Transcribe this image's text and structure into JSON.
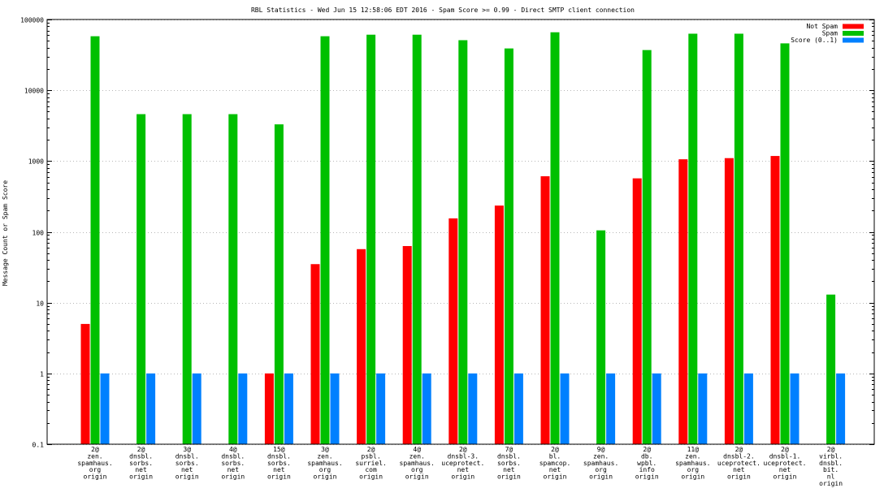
{
  "chart_data": {
    "type": "bar",
    "title": "RBL Statistics - Wed Jun 15 12:58:06 EDT 2016 - Spam Score >= 0.99 - Direct SMTP client connection",
    "xlabel": "",
    "ylabel": "Message Count or Spam Score",
    "yscale": "log",
    "ylim": [
      0.1,
      100000
    ],
    "yticks": [
      0.1,
      1,
      10,
      100,
      1000,
      10000,
      100000
    ],
    "ytick_labels": [
      "0.1",
      "1",
      "10",
      "100",
      "1000",
      "10000",
      "100000"
    ],
    "grid": true,
    "legend_position": "top-right",
    "categories": [
      "2@ zen. spamhaus. org origin",
      "2@ dnsbl. sorbs. net origin",
      "3@ dnsbl. sorbs. net origin",
      "4@ dnsbl. sorbs. net origin",
      "15@ dnsbl. sorbs. net origin",
      "3@ zen. spamhaus. org origin",
      "2@ psbl. surriel. com origin",
      "4@ zen. spamhaus. org origin",
      "2@ dnsbl-3. uceprotect. net origin",
      "7@ dnsbl. sorbs. net origin",
      "2@ bl. spamcop. net origin",
      "9@ zen. spamhaus. org origin",
      "2@ db. wpbl. info origin",
      "11@ zen. spamhaus. org origin",
      "2@ dnsbl-2. uceprotect. net origin",
      "2@ dnsbl-1. uceprotect. net origin",
      "2@ virbl. dnsbl. bit. nl origin"
    ],
    "category_lines": [
      [
        "2@",
        "zen.",
        "spamhaus.",
        "org",
        "origin"
      ],
      [
        "2@",
        "dnsbl.",
        "sorbs.",
        "net",
        "origin"
      ],
      [
        "3@",
        "dnsbl.",
        "sorbs.",
        "net",
        "origin"
      ],
      [
        "4@",
        "dnsbl.",
        "sorbs.",
        "net",
        "origin"
      ],
      [
        "15@",
        "dnsbl.",
        "sorbs.",
        "net",
        "origin"
      ],
      [
        "3@",
        "zen.",
        "spamhaus.",
        "org",
        "origin"
      ],
      [
        "2@",
        "psbl.",
        "surriel.",
        "com",
        "origin"
      ],
      [
        "4@",
        "zen.",
        "spamhaus.",
        "org",
        "origin"
      ],
      [
        "2@",
        "dnsbl-3.",
        "uceprotect.",
        "net",
        "origin"
      ],
      [
        "7@",
        "dnsbl.",
        "sorbs.",
        "net",
        "origin"
      ],
      [
        "2@",
        "bl.",
        "spamcop.",
        "net",
        "origin"
      ],
      [
        "9@",
        "zen.",
        "spamhaus.",
        "org",
        "origin"
      ],
      [
        "2@",
        "db.",
        "wpbl.",
        "info",
        "origin"
      ],
      [
        "11@",
        "zen.",
        "spamhaus.",
        "org",
        "origin"
      ],
      [
        "2@",
        "dnsbl-2.",
        "uceprotect.",
        "net",
        "origin"
      ],
      [
        "2@",
        "dnsbl-1.",
        "uceprotect.",
        "net",
        "origin"
      ],
      [
        "2@",
        "virbl.",
        "dnsbl.",
        "bit.",
        "nl",
        "origin"
      ]
    ],
    "series": [
      {
        "name": "Not Spam",
        "color": "#ff0000",
        "values": [
          5,
          null,
          null,
          null,
          1,
          35,
          57,
          63,
          155,
          235,
          610,
          null,
          570,
          1060,
          1100,
          1180,
          null
        ]
      },
      {
        "name": "Spam",
        "color": "#00c000",
        "values": [
          58000,
          4600,
          4600,
          4600,
          3300,
          58000,
          61000,
          61000,
          51000,
          39000,
          66000,
          105,
          37000,
          63000,
          63000,
          46000,
          13
        ]
      },
      {
        "name": "Score (0..1)",
        "color": "#0080ff",
        "values": [
          1,
          1,
          1,
          1,
          1,
          1,
          1,
          1,
          1,
          1,
          1,
          1,
          1,
          1,
          1,
          1,
          1
        ]
      }
    ]
  }
}
